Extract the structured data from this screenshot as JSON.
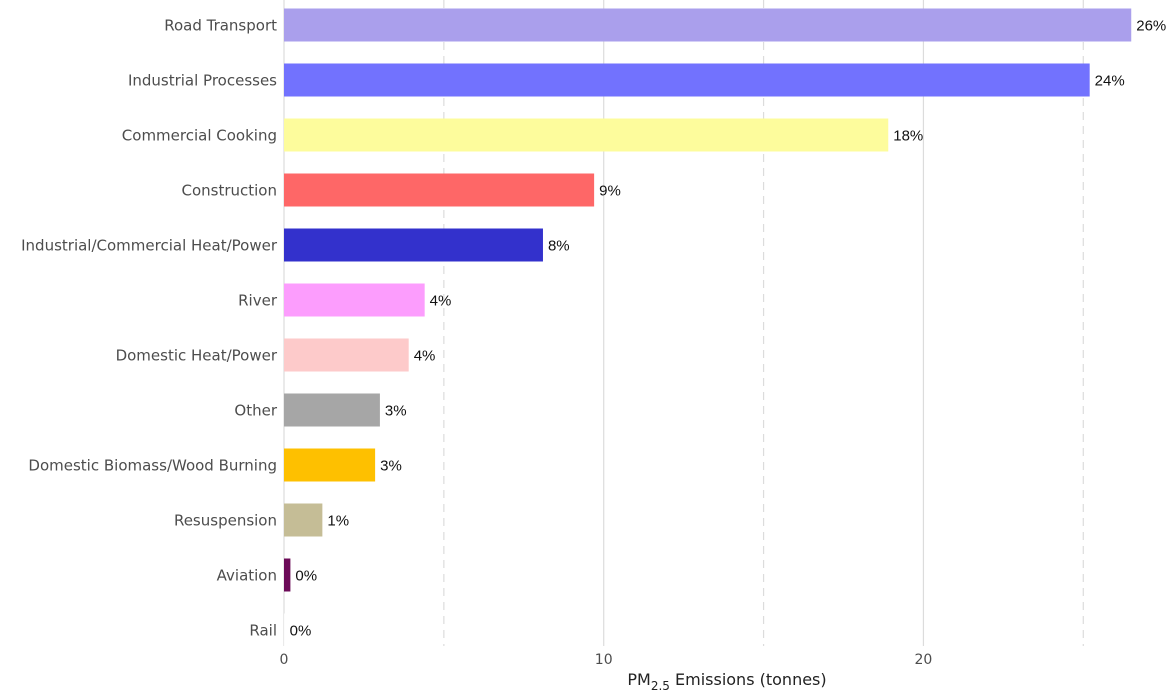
{
  "chart_data": {
    "type": "bar",
    "orientation": "horizontal",
    "categories": [
      "Road Transport",
      "Industrial Processes",
      "Commercial Cooking",
      "Construction",
      "Industrial/Commercial Heat/Power",
      "River",
      "Domestic Heat/Power",
      "Other",
      "Domestic Biomass/Wood Burning",
      "Resuspension",
      "Aviation",
      "Rail"
    ],
    "values": [
      26.5,
      25.2,
      18.9,
      9.7,
      8.1,
      4.4,
      3.9,
      3.0,
      2.85,
      1.2,
      0.2,
      0.02
    ],
    "data_labels": [
      "26%",
      "24%",
      "18%",
      "9%",
      "8%",
      "4%",
      "4%",
      "3%",
      "3%",
      "1%",
      "0%",
      "0%"
    ],
    "colors": [
      "#aa9fec",
      "#7272fe",
      "#fdfc9c",
      "#fe6767",
      "#3331cc",
      "#fc9dfd",
      "#fdcaca",
      "#a6a6a6",
      "#fec000",
      "#c5bd96",
      "#6c0b58",
      "#ffffff"
    ],
    "x_ticks": [
      0,
      10,
      20
    ],
    "x_tick_labels": [
      "0",
      "10",
      "20"
    ],
    "xlim": [
      0,
      27.9
    ],
    "xlabel": {
      "main": "PM",
      "subscript": "2.5",
      "rest": " Emissions (tonnes)"
    },
    "ylabel": "",
    "title": "",
    "grid": {
      "major": true,
      "minor_dashed": true,
      "color": "#dcdcdc"
    },
    "legend": "none"
  }
}
